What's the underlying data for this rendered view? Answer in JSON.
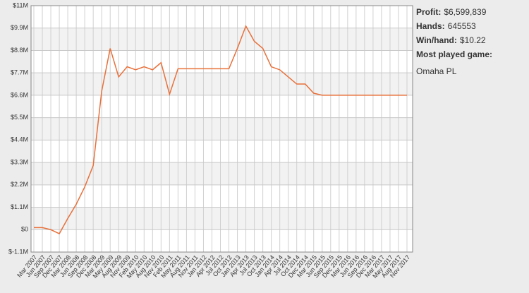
{
  "chart_data": {
    "type": "line",
    "categories": [
      "Mar 2007",
      "Jun 2007",
      "Sep 2007",
      "Dec 2007",
      "Mar 2008",
      "Jun 2008",
      "Sep 2008",
      "Dec 2008",
      "Mar 2009",
      "May 2009",
      "Aug 2009",
      "Nov 2009",
      "Feb 2010",
      "May 2010",
      "Aug 2010",
      "Nov 2010",
      "Feb 2011",
      "May 2011",
      "Aug 2011",
      "Nov 2011",
      "Jan 2012",
      "Apr 2012",
      "Jul 2012",
      "Oct 2012",
      "Jan 2013",
      "Apr 2013",
      "Jul 2013",
      "Oct 2013",
      "Jan 2014",
      "Apr 2014",
      "Jul 2014",
      "Oct 2014",
      "Dec 2014",
      "Mar 2015",
      "Jun 2015",
      "Sep 2015",
      "Dec 2015",
      "Mar 2016",
      "Jun 2016",
      "Sep 2016",
      "Dec 2016",
      "Mar 2017",
      "May 2017",
      "Aug 2017",
      "Nov 2017"
    ],
    "series": [
      {
        "color": "#e8703a",
        "values": [
          0.1,
          0.1,
          0.0,
          -0.2,
          0.55,
          1.25,
          2.1,
          3.15,
          6.8,
          8.9,
          7.5,
          8.0,
          7.85,
          8.0,
          7.85,
          8.2,
          6.65,
          7.9,
          7.9,
          7.9,
          7.9,
          7.9,
          7.9,
          7.9,
          8.9,
          10.0,
          9.25,
          8.9,
          8.0,
          7.85,
          7.5,
          7.15,
          7.15,
          6.7,
          6.6,
          6.6,
          6.6,
          6.6,
          6.6,
          6.6,
          6.6,
          6.6,
          6.6,
          6.6,
          6.6
        ]
      }
    ],
    "ylim": [
      -1.1,
      11
    ],
    "yticks": [
      {
        "value": -1.1,
        "label": "$-1.1M"
      },
      {
        "value": 0,
        "label": "$0"
      },
      {
        "value": 1.1,
        "label": "$1.1M"
      },
      {
        "value": 2.2,
        "label": "$2.2M"
      },
      {
        "value": 3.3,
        "label": "$3.3M"
      },
      {
        "value": 4.4,
        "label": "$4.4M"
      },
      {
        "value": 5.5,
        "label": "$5.5M"
      },
      {
        "value": 6.6,
        "label": "$6.6M"
      },
      {
        "value": 7.7,
        "label": "$7.7M"
      },
      {
        "value": 8.8,
        "label": "$8.8M"
      },
      {
        "value": 9.9,
        "label": "$9.9M"
      },
      {
        "value": 11,
        "label": "$11M"
      }
    ],
    "grid": true
  },
  "panel": {
    "stats": [
      {
        "label": "Profit:",
        "value": "$6,599,839"
      },
      {
        "label": "Hands:",
        "value": "645553"
      },
      {
        "label": "Win/hand:",
        "value": "$10.22"
      }
    ],
    "game_label": "Most played game:",
    "game": "Omaha PL"
  }
}
